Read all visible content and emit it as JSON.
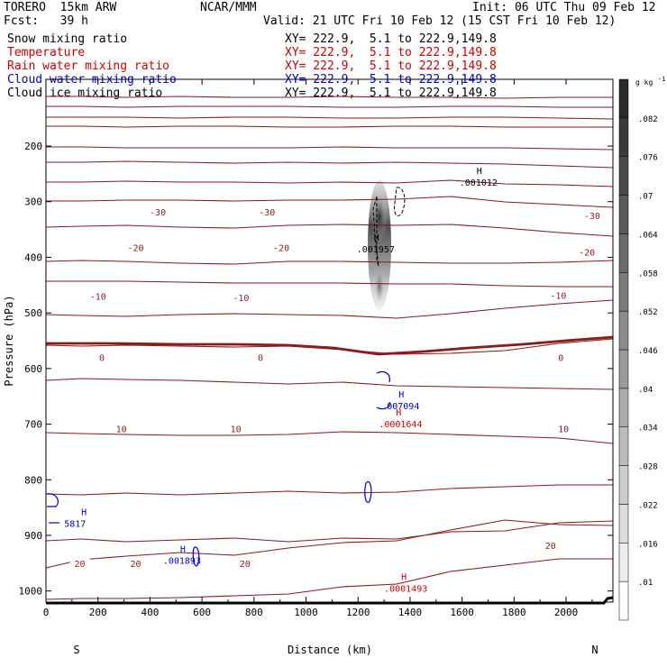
{
  "header": {
    "model": "TORERO  15km ARW",
    "center": "NCAR/MMM",
    "init": "Init: 06 UTC Thu 09 Feb 12",
    "fcst": "Fcst:   39 h",
    "valid": "Valid: 21 UTC Fri 10 Feb 12 (15 CST Fri 10 Feb 12)",
    "fields": [
      {
        "name": "Snow mixing ratio",
        "xy": "XY= 222.9,  5.1 to 222.9,149.8",
        "color": "#000000"
      },
      {
        "name": "Temperature",
        "xy": "XY= 222.9,  5.1 to 222.9,149.8",
        "color": "#cc0000"
      },
      {
        "name": "Rain water mixing ratio",
        "xy": "XY= 222.9,  5.1 to 222.9,149.8",
        "color": "#cc0000"
      },
      {
        "name": "Cloud water mixing ratio",
        "xy": "XY= 222.9,  5.1 to 222.9,149.8",
        "color": "#0000cc"
      },
      {
        "name": "Cloud ice mixing ratio",
        "xy": "XY= 222.9,  5.1 to 222.9,149.8",
        "color": "#000000"
      }
    ]
  },
  "chart_data": {
    "type": "contour cross-section",
    "xlabel": "Distance (km)",
    "ylabel": "Pressure (hPa)",
    "xlim": [
      0,
      2180
    ],
    "ylim": [
      1020,
      80
    ],
    "x_ticks": [
      0,
      200,
      400,
      600,
      800,
      1000,
      1200,
      1400,
      1600,
      1800,
      2000
    ],
    "y_ticks": [
      200,
      300,
      400,
      500,
      600,
      700,
      800,
      900,
      1000
    ],
    "end_labels": {
      "left": "S",
      "right": "N"
    },
    "temperature_labels": [
      {
        "x": 430,
        "p": 318,
        "text": "-30"
      },
      {
        "x": 850,
        "p": 318,
        "text": "-30"
      },
      {
        "x": 2100,
        "p": 325,
        "text": "-30"
      },
      {
        "x": 345,
        "p": 382,
        "text": "-20"
      },
      {
        "x": 905,
        "p": 382,
        "text": "-20"
      },
      {
        "x": 2080,
        "p": 390,
        "text": "-20"
      },
      {
        "x": 200,
        "p": 470,
        "text": "-10"
      },
      {
        "x": 750,
        "p": 472,
        "text": "-10"
      },
      {
        "x": 1970,
        "p": 468,
        "text": "-10"
      },
      {
        "x": 215,
        "p": 580,
        "text": "0"
      },
      {
        "x": 825,
        "p": 580,
        "text": "0"
      },
      {
        "x": 1980,
        "p": 580,
        "text": "0"
      },
      {
        "x": 290,
        "p": 708,
        "text": "10"
      },
      {
        "x": 730,
        "p": 708,
        "text": "10"
      },
      {
        "x": 1990,
        "p": 708,
        "text": "10"
      },
      {
        "x": 345,
        "p": 950,
        "text": "20"
      },
      {
        "x": 765,
        "p": 950,
        "text": "20"
      },
      {
        "x": 1940,
        "p": 918,
        "text": "20"
      },
      {
        "x": 130,
        "p": 950,
        "text": "20"
      }
    ],
    "maxima": [
      {
        "x": 1590,
        "p": 258,
        "value": ".001012",
        "field": "Cloud ice mixing ratio",
        "color": "#000000"
      },
      {
        "x": 1195,
        "p": 378,
        "value": ".001957",
        "field": "Snow mixing ratio",
        "color": "#000000"
      },
      {
        "x": 1280,
        "p": 693,
        "value": ".0001644",
        "field": "Rain water mixing ratio",
        "color": "#cc0000"
      },
      {
        "x": 1290,
        "p": 660,
        "value": ".007094",
        "field": "Cloud water mixing ratio",
        "color": "#0000cc"
      },
      {
        "x": 70,
        "p": 872,
        "value": "5817",
        "field": "Cloud water mixing ratio",
        "color": "#0000cc"
      },
      {
        "x": 450,
        "p": 938,
        "value": ".001893",
        "field": "Cloud water mixing ratio",
        "color": "#0000cc"
      },
      {
        "x": 1300,
        "p": 988,
        "value": ".0001493",
        "field": "Rain water mixing ratio",
        "color": "#cc0000"
      }
    ],
    "marker": "H",
    "colorbar": {
      "unit": "g kg",
      "unit_exponent": "-1",
      "levels": [
        ".01",
        ".016",
        ".022",
        ".028",
        ".034",
        ".04",
        ".046",
        ".052",
        ".058",
        ".064",
        ".07",
        ".076",
        ".082"
      ]
    }
  }
}
